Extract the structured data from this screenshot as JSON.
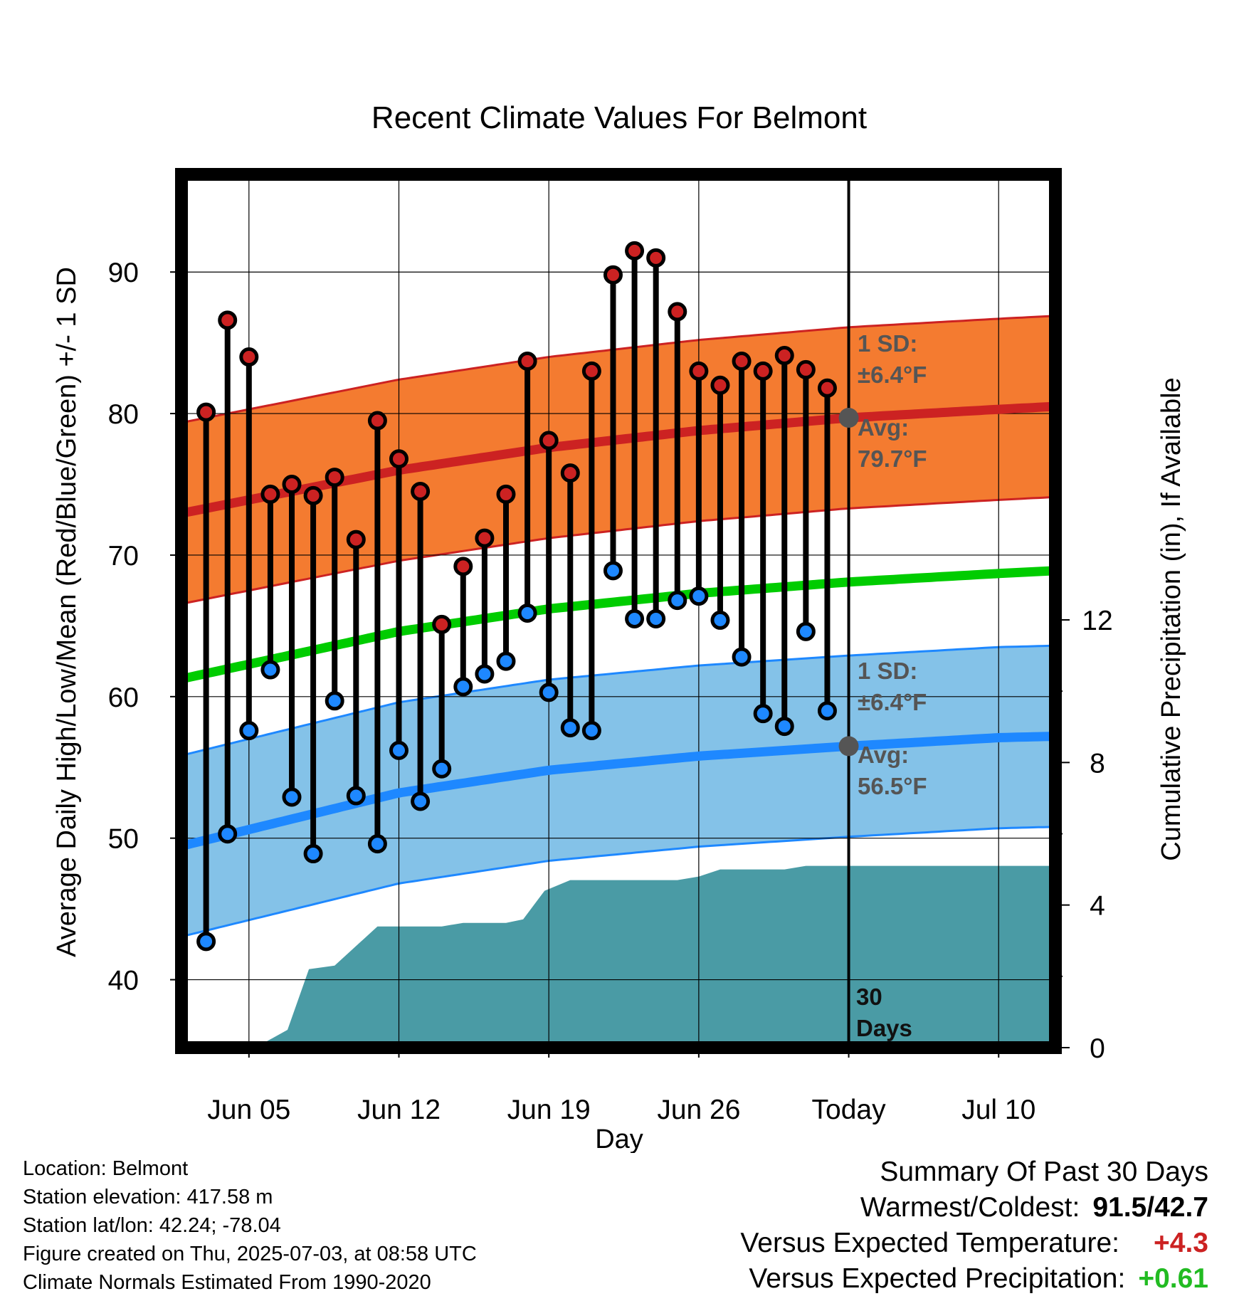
{
  "chart_data": {
    "type": "line",
    "title": "Recent Climate Values For Belmont",
    "xlabel": "Day",
    "ylabel": "Average Daily High/Low/Mean (Red/Blue/Green) +/- 1 SD",
    "y2label": "Cumulative Precipitation (in), If Available",
    "x_ticks": [
      "Jun 05",
      "Jun 12",
      "Jun 19",
      "Jun 26",
      "Today",
      "Jul 10"
    ],
    "x_tick_days": [
      5,
      12,
      19,
      26,
      33,
      40
    ],
    "xlim": [
      1.85,
      42.65
    ],
    "ylim": [
      35.2,
      96.9
    ],
    "y_ticks": [
      40,
      50,
      60,
      70,
      80,
      90
    ],
    "y2_ticks": [
      0,
      4,
      8,
      12
    ],
    "y2lim": [
      0,
      24.5
    ],
    "today_day": 33,
    "grid": true,
    "highs": [
      80.1,
      86.6,
      84.0,
      74.3,
      75.0,
      74.2,
      75.5,
      71.1,
      79.5,
      76.8,
      74.5,
      65.1,
      69.2,
      71.2,
      74.3,
      83.7,
      78.1,
      75.8,
      83.0,
      89.8,
      91.5,
      91.0,
      87.2,
      83.0,
      82.0,
      83.7,
      83.0,
      84.1,
      83.1,
      81.8
    ],
    "lows": [
      42.7,
      50.3,
      57.6,
      61.9,
      52.9,
      48.9,
      59.7,
      53.0,
      49.6,
      56.2,
      52.6,
      54.9,
      60.7,
      61.6,
      62.5,
      65.9,
      60.3,
      57.8,
      57.6,
      68.9,
      65.5,
      65.5,
      66.8,
      67.1,
      65.4,
      62.8,
      58.8,
      57.9,
      64.6,
      59.0
    ],
    "first_day": 3,
    "normal_days": [
      2,
      12,
      19,
      26,
      33,
      40,
      42.6
    ],
    "normal_high": [
      73.0,
      76.0,
      77.6,
      78.8,
      79.7,
      80.3,
      80.5
    ],
    "normal_high_sd": 6.4,
    "normal_low": [
      49.5,
      53.2,
      54.8,
      55.8,
      56.5,
      57.1,
      57.2
    ],
    "normal_low_sd": 6.4,
    "normal_mean": [
      61.3,
      64.6,
      66.2,
      67.3,
      68.1,
      68.7,
      68.9
    ],
    "precip_days": [
      1.85,
      5.3,
      6.8,
      7.8,
      9.0,
      11.0,
      12.0,
      13.0,
      14.0,
      15.0,
      16.0,
      17.0,
      17.8,
      18.8,
      20.0,
      22.0,
      24.0,
      25.0,
      26.0,
      27.0,
      30.0,
      31.0,
      33.0,
      42.65
    ],
    "precip": [
      0,
      0,
      0.5,
      2.2,
      2.3,
      3.4,
      3.4,
      3.4,
      3.4,
      3.5,
      3.5,
      3.5,
      3.6,
      4.4,
      4.7,
      4.7,
      4.7,
      4.7,
      4.8,
      5.0,
      5.0,
      5.1,
      5.1,
      5.1
    ],
    "annotations": {
      "high_sd_label": "1 SD:",
      "high_sd_value": "±6.4°F",
      "high_avg_label": "Avg:",
      "high_avg_value": "79.7°F",
      "low_sd_label": "1 SD:",
      "low_sd_value": "±6.4°F",
      "low_avg_label": "Avg:",
      "low_avg_value": "56.5°F",
      "window_line1": "30",
      "window_line2": "Days"
    },
    "colors": {
      "high_band": "#f47b30",
      "high_line": "#cc2222",
      "high_dot": "#cc2222",
      "low_band": "#84c2e8",
      "low_line": "#1e88ff",
      "low_dot": "#1e88ff",
      "mean_line": "#00cc00",
      "precip": "#4a9ba5",
      "today_marker": "#555555"
    }
  },
  "info": {
    "location": "Location: Belmont",
    "elevation": "Station elevation: 417.58 m",
    "latlon": "Station lat/lon: 42.24; -78.04",
    "created": "Figure created on Thu, 2025-07-03, at 08:58 UTC",
    "normals": "Climate Normals Estimated From 1990-2020"
  },
  "summary": {
    "heading": "Summary Of Past 30 Days",
    "warm_label": "Warmest/Coldest:",
    "warm_value": "91.5/42.7",
    "temp_label": "Versus Expected Temperature:",
    "temp_value": "+4.3",
    "temp_color": "#cc2222",
    "precip_label": "Versus Expected Precipitation:",
    "precip_value": "+0.61",
    "precip_color": "#22bb22"
  }
}
